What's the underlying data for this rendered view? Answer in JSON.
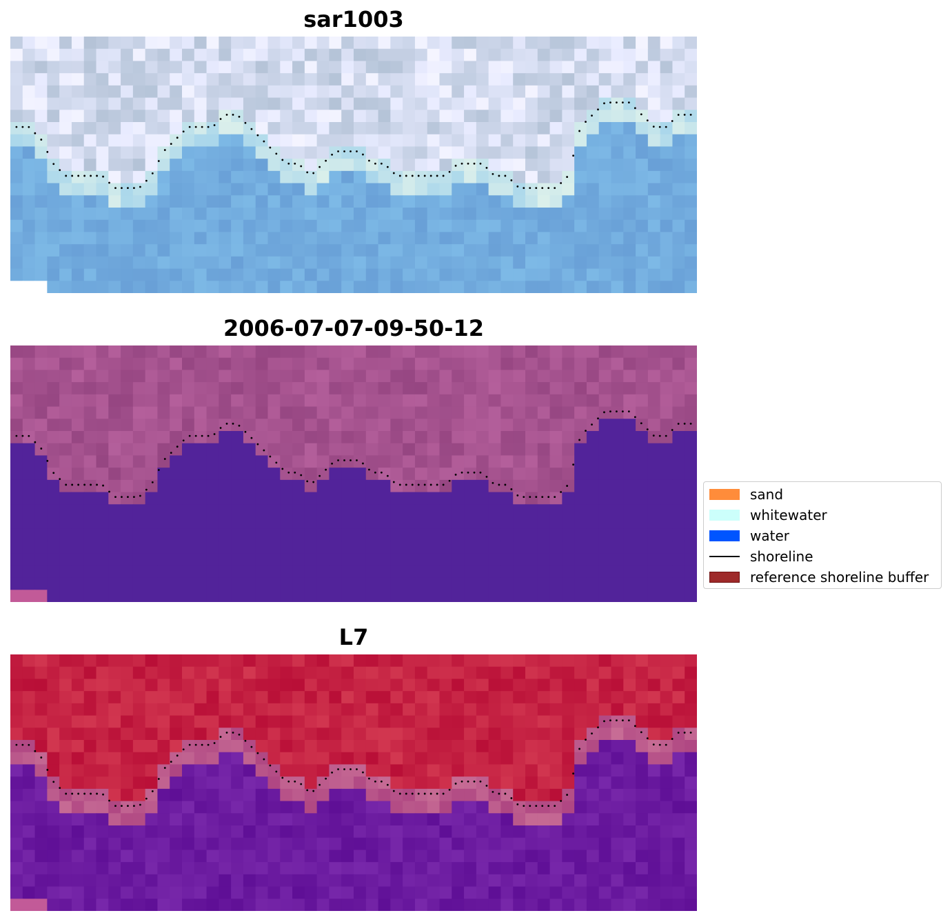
{
  "panels": [
    {
      "id": "rgb",
      "title": "sar1003"
    },
    {
      "id": "classified",
      "title": "2006-07-07-09-50-12"
    },
    {
      "id": "mndwi",
      "title": "L7"
    }
  ],
  "legend": {
    "items": [
      {
        "label": "sand",
        "kind": "patch",
        "color": "#ff8c3a"
      },
      {
        "label": "whitewater",
        "kind": "patch",
        "color": "#ccfffb"
      },
      {
        "label": "water",
        "kind": "patch",
        "color": "#0055ff"
      },
      {
        "label": "shoreline",
        "kind": "line",
        "color": "#000000"
      },
      {
        "label": "reference shoreline buffer",
        "kind": "patch",
        "color": "#9e2a2a"
      }
    ]
  },
  "colors": {
    "water_class": "#52239a",
    "land_class": "#9a4f8c",
    "mndwi_land": "#c0183c",
    "mndwi_water": "#6a169a",
    "rgb_water": "#7aaadd",
    "rgb_land": "#c8d4e4",
    "shoreline_points": "#000000"
  }
}
